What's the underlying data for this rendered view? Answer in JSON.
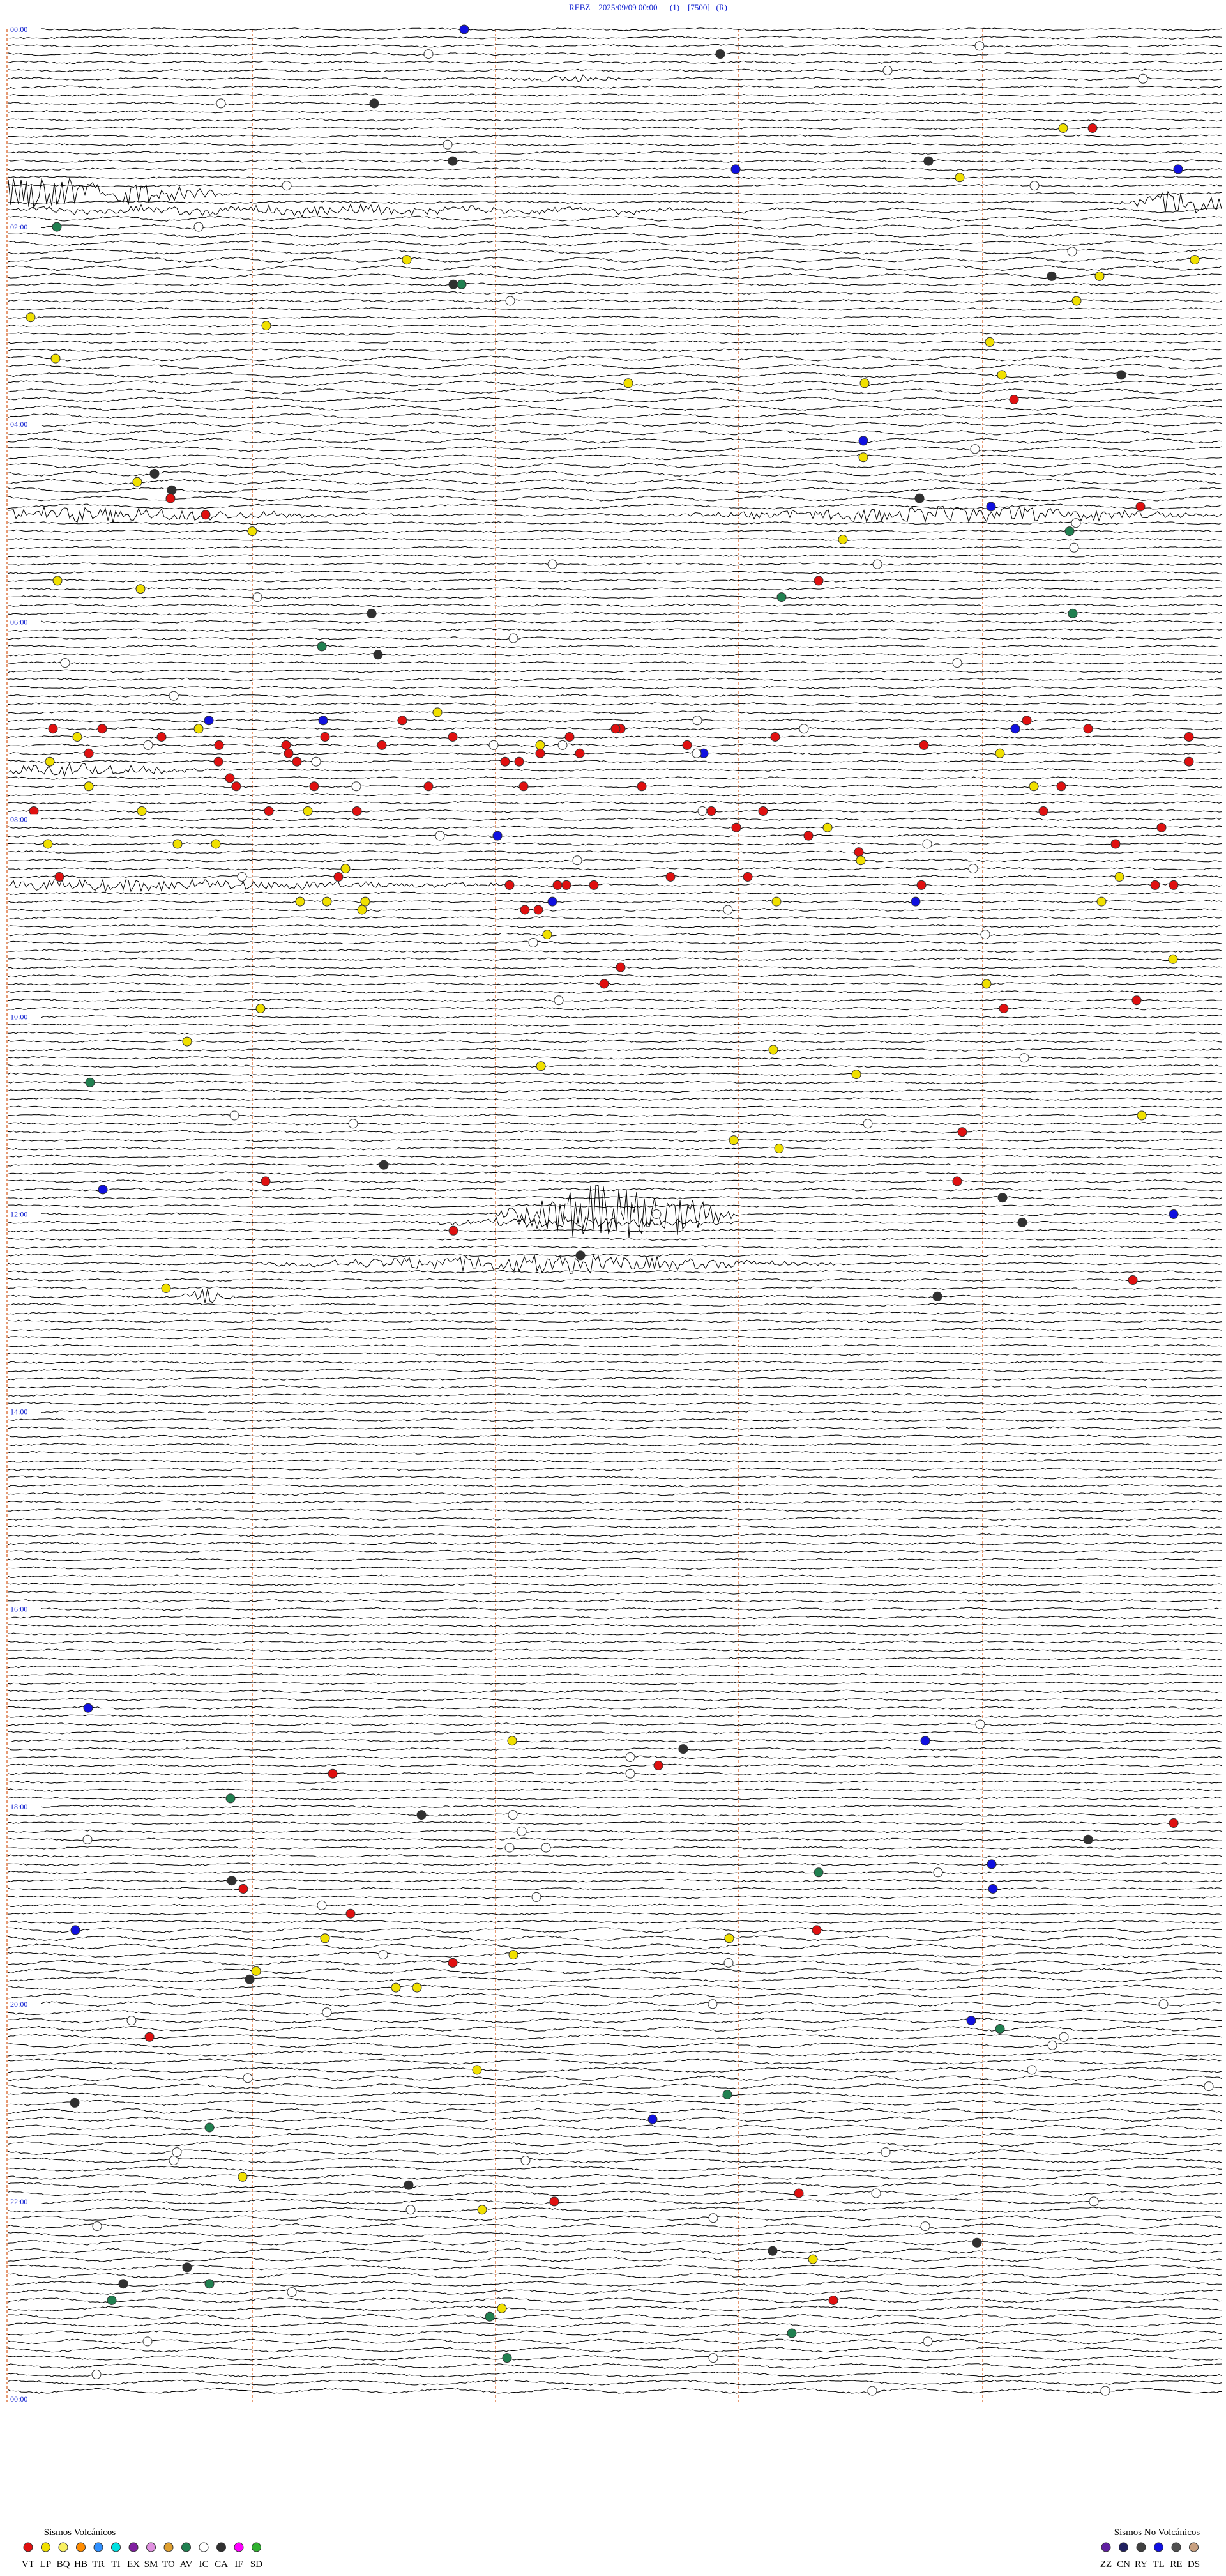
{
  "header": {
    "title": "REBZ    2025/09/09 00:00      (1)    [7500]   (R)"
  },
  "time_labels": [
    "00:00",
    "02:00",
    "04:00",
    "06:00",
    "08:00",
    "10:00",
    "12:00",
    "14:00",
    "16:00",
    "18:00",
    "20:00",
    "22:00",
    "00:00"
  ],
  "legend": {
    "volcanic": {
      "title": "Sismos Volcánicos",
      "items": [
        {
          "code": "VT",
          "color": "#e01010"
        },
        {
          "code": "LP",
          "color": "#f0e000"
        },
        {
          "code": "BQ",
          "color": "#f8f060"
        },
        {
          "code": "HB",
          "color": "#ff8c00"
        },
        {
          "code": "TR",
          "color": "#3090ff"
        },
        {
          "code": "TI",
          "color": "#00e0e0"
        },
        {
          "code": "EX",
          "color": "#8020a0"
        },
        {
          "code": "SM",
          "color": "#e090e0"
        },
        {
          "code": "TO",
          "color": "#e0a030"
        },
        {
          "code": "AV",
          "color": "#208050"
        },
        {
          "code": "IC",
          "color": "#ffffff"
        },
        {
          "code": "CA",
          "color": "#303030"
        },
        {
          "code": "IF",
          "color": "#ff00ff"
        },
        {
          "code": "SD",
          "color": "#30b030"
        }
      ]
    },
    "non_volcanic": {
      "title": "Sismos No Volcánicos",
      "items": [
        {
          "code": "ZZ",
          "color": "#6020a0"
        },
        {
          "code": "CN",
          "color": "#202060"
        },
        {
          "code": "RY",
          "color": "#404040"
        },
        {
          "code": "TL",
          "color": "#1010e0"
        },
        {
          "code": "RE",
          "color": "#505050"
        },
        {
          "code": "DS",
          "color": "#c8a080"
        }
      ]
    }
  }
}
